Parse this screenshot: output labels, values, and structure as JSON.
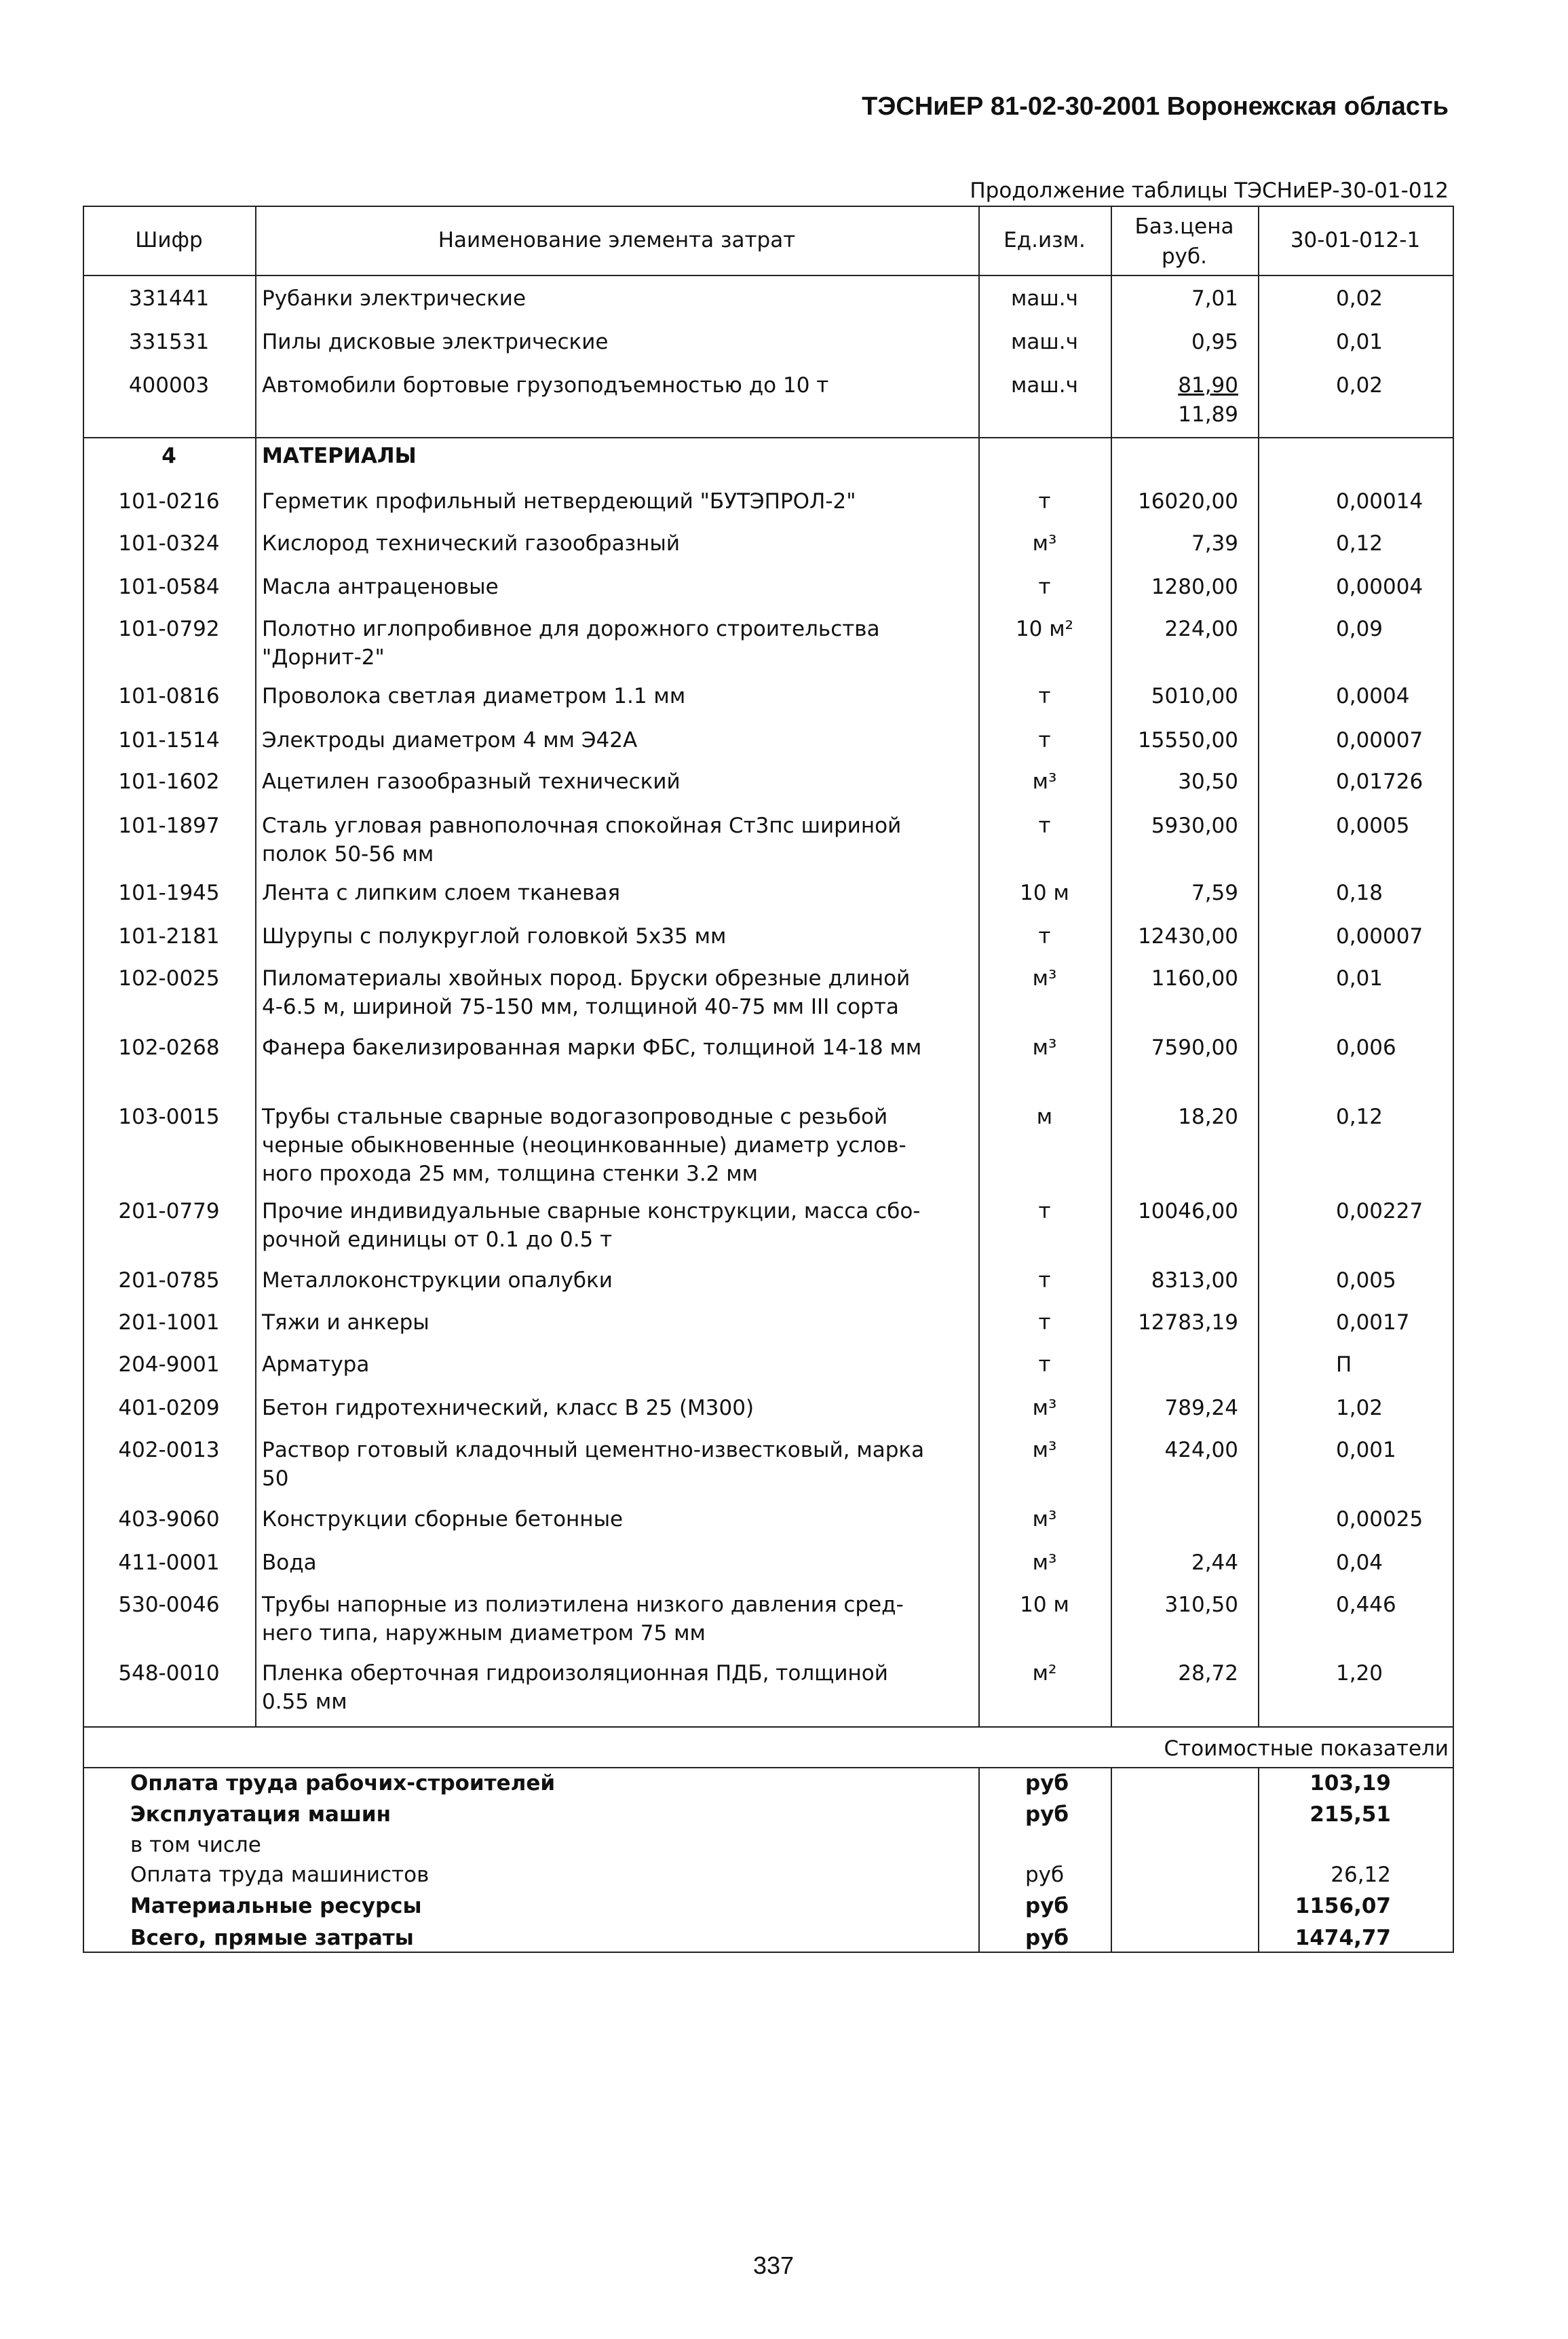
{
  "header": {
    "title": "ТЭСНиЕР 81-02-30-2001 Воронежская область"
  },
  "table": {
    "caption": "Продолжение таблицы ТЭСНиЕР-30-01-012",
    "columns": [
      "Шифр",
      "Наименование элемента затрат",
      "Ед.изм.",
      [
        "Баз.цена",
        "руб."
      ],
      "30-01-012-1"
    ],
    "machines": [
      {
        "code": "331441",
        "name": [
          "Рубанки электрические"
        ],
        "unit": "маш.ч",
        "price": [
          "7,01"
        ],
        "norm": "0,02"
      },
      {
        "code": "331531",
        "name": [
          "Пилы дисковые электрические"
        ],
        "unit": "маш.ч",
        "price": [
          "0,95"
        ],
        "norm": "0,01"
      },
      {
        "code": "400003",
        "name": [
          "Автомобили бортовые грузоподъемностью до 10 т"
        ],
        "unit": "маш.ч",
        "price": [
          "81,90",
          "11,89"
        ],
        "norm": "0,02"
      }
    ],
    "section": {
      "number": "4",
      "title": "МАТЕРИАЛЫ"
    },
    "materials": [
      {
        "code": "101-0216",
        "name": [
          "Герметик профильный нетвердеющий \"БУТЭПРОЛ-2\""
        ],
        "unit": "т",
        "price": [
          "16020,00"
        ],
        "norm": "0,00014"
      },
      {
        "code": "101-0324",
        "name": [
          "Кислород технический газообразный"
        ],
        "unit": "м³",
        "price": [
          "7,39"
        ],
        "norm": "0,12"
      },
      {
        "code": "101-0584",
        "name": [
          "Масла антраценовые"
        ],
        "unit": "т",
        "price": [
          "1280,00"
        ],
        "norm": "0,00004"
      },
      {
        "code": "101-0792",
        "name": [
          "Полотно иглопробивное для дорожного строительства",
          "\"Дорнит-2\""
        ],
        "unit": "10 м²",
        "price": [
          "224,00"
        ],
        "norm": "0,09"
      },
      {
        "code": "101-0816",
        "name": [
          "Проволока светлая диаметром 1.1 мм"
        ],
        "unit": "т",
        "price": [
          "5010,00"
        ],
        "norm": "0,0004"
      },
      {
        "code": "101-1514",
        "name": [
          "Электроды диаметром 4 мм Э42А"
        ],
        "unit": "т",
        "price": [
          "15550,00"
        ],
        "norm": "0,00007"
      },
      {
        "code": "101-1602",
        "name": [
          "Ацетилен газообразный технический"
        ],
        "unit": "м³",
        "price": [
          "30,50"
        ],
        "norm": "0,01726"
      },
      {
        "code": "101-1897",
        "name": [
          "Сталь угловая равнополочная спокойная Ст3пс шириной",
          "полок 50-56 мм"
        ],
        "unit": "т",
        "price": [
          "5930,00"
        ],
        "norm": "0,0005"
      },
      {
        "code": "101-1945",
        "name": [
          "Лента с липким слоем тканевая"
        ],
        "unit": "10 м",
        "price": [
          "7,59"
        ],
        "norm": "0,18"
      },
      {
        "code": "101-2181",
        "name": [
          "Шурупы с полукруглой головкой 5х35 мм"
        ],
        "unit": "т",
        "price": [
          "12430,00"
        ],
        "norm": "0,00007"
      },
      {
        "code": "102-0025",
        "name": [
          "Пиломатериалы хвойных пород. Бруски обрезные длиной",
          "4-6.5 м, шириной 75-150 мм, толщиной 40-75 мм III сорта"
        ],
        "unit": "м³",
        "price": [
          "1160,00"
        ],
        "norm": "0,01"
      },
      {
        "code": "102-0268",
        "name": [
          "Фанера бакелизированная марки ФБС, толщиной 14-18 мм"
        ],
        "unit": "м³",
        "price": [
          "7590,00"
        ],
        "norm": "0,006"
      },
      {
        "code": "103-0015",
        "name": [
          "Трубы стальные сварные водогазопроводные с резьбой",
          "черные обыкновенные (неоцинкованные) диаметр услов-",
          "ного прохода 25 мм, толщина стенки 3.2 мм"
        ],
        "unit": "м",
        "price": [
          "18,20"
        ],
        "norm": "0,12"
      },
      {
        "code": "201-0779",
        "name": [
          "Прочие индивидуальные сварные конструкции, масса сбо-",
          "рочной единицы от 0.1 до 0.5 т"
        ],
        "unit": "т",
        "price": [
          "10046,00"
        ],
        "norm": "0,00227"
      },
      {
        "code": "201-0785",
        "name": [
          "Металлоконструкции опалубки"
        ],
        "unit": "т",
        "price": [
          "8313,00"
        ],
        "norm": "0,005"
      },
      {
        "code": "201-1001",
        "name": [
          "Тяжи и анкеры"
        ],
        "unit": "т",
        "price": [
          "12783,19"
        ],
        "norm": "0,0017"
      },
      {
        "code": "204-9001",
        "name": [
          "Арматура"
        ],
        "unit": "т",
        "norm": "П"
      },
      {
        "code": "401-0209",
        "name": [
          "Бетон гидротехнический, класс В 25 (М300)"
        ],
        "unit": "м³",
        "price": [
          "789,24"
        ],
        "norm": "1,02"
      },
      {
        "code": "402-0013",
        "name": [
          "Раствор готовый кладочный цементно-известковый, марка",
          "50"
        ],
        "unit": "м³",
        "price": [
          "424,00"
        ],
        "norm": "0,001"
      },
      {
        "code": "403-9060",
        "name": [
          "Конструкции сборные бетонные"
        ],
        "unit": "м³",
        "norm": "0,00025"
      },
      {
        "code": "411-0001",
        "name": [
          "Вода"
        ],
        "unit": "м³",
        "price": [
          "2,44"
        ],
        "norm": "0,04"
      },
      {
        "code": "530-0046",
        "name": [
          "Трубы напорные из полиэтилена низкого давления сред-",
          "него типа, наружным диаметром 75 мм"
        ],
        "unit": "10 м",
        "price": [
          "310,50"
        ],
        "norm": "0,446"
      },
      {
        "code": "548-0010",
        "name": [
          "Пленка оберточная гидроизоляционная ПДБ, толщиной",
          "0.55 мм"
        ],
        "unit": "м²",
        "price": [
          "28,72"
        ],
        "norm": "1,20"
      }
    ],
    "summary_title": "Стоимостные показатели",
    "summary": [
      {
        "label": "Оплата труда рабочих-строителей",
        "unit": "руб",
        "value": "103,19",
        "bold": true
      },
      {
        "label": "Эксплуатация машин",
        "unit": "руб",
        "value": "215,51",
        "bold": true
      },
      {
        "label": "в том числе",
        "bold": false
      },
      {
        "label": "Оплата труда машинистов",
        "unit": "руб",
        "value": "26,12",
        "bold": false
      },
      {
        "label": "Материальные ресурсы",
        "unit": "руб",
        "value": "1156,07",
        "bold": true
      },
      {
        "label": "Всего, прямые затраты",
        "unit": "руб",
        "value": "1474,77",
        "bold": true
      }
    ]
  },
  "footer": {
    "page": "337"
  }
}
